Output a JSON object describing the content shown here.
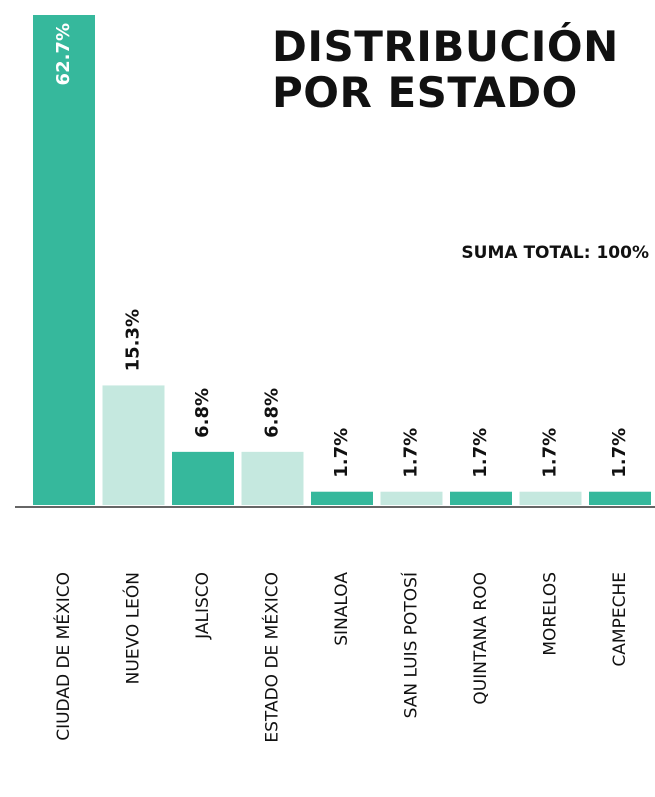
{
  "chart_data": {
    "type": "bar",
    "title": "DISTRIBUCIÓN POR ESTADO",
    "annotation": "SUMA TOTAL: 100%",
    "categories": [
      "CIUDAD DE MÉXICO",
      "NUEVO LEÓN",
      "JALISCO",
      "ESTADO DE MÉXICO",
      "SINALOA",
      "SAN LUIS POTOSÍ",
      "QUINTANA ROO",
      "MORELOS",
      "CAMPECHE"
    ],
    "values": [
      62.7,
      15.3,
      6.8,
      6.8,
      1.7,
      1.7,
      1.7,
      1.7,
      1.7
    ],
    "value_labels": [
      "62.7%",
      "15.3%",
      "6.8%",
      "6.8%",
      "1.7%",
      "1.7%",
      "1.7%",
      "1.7%",
      "1.7%"
    ],
    "colors": [
      "#36b89c",
      "#c5e8df",
      "#36b89c",
      "#c5e8df",
      "#36b89c",
      "#c5e8df",
      "#36b89c",
      "#c5e8df",
      "#36b89c"
    ]
  }
}
